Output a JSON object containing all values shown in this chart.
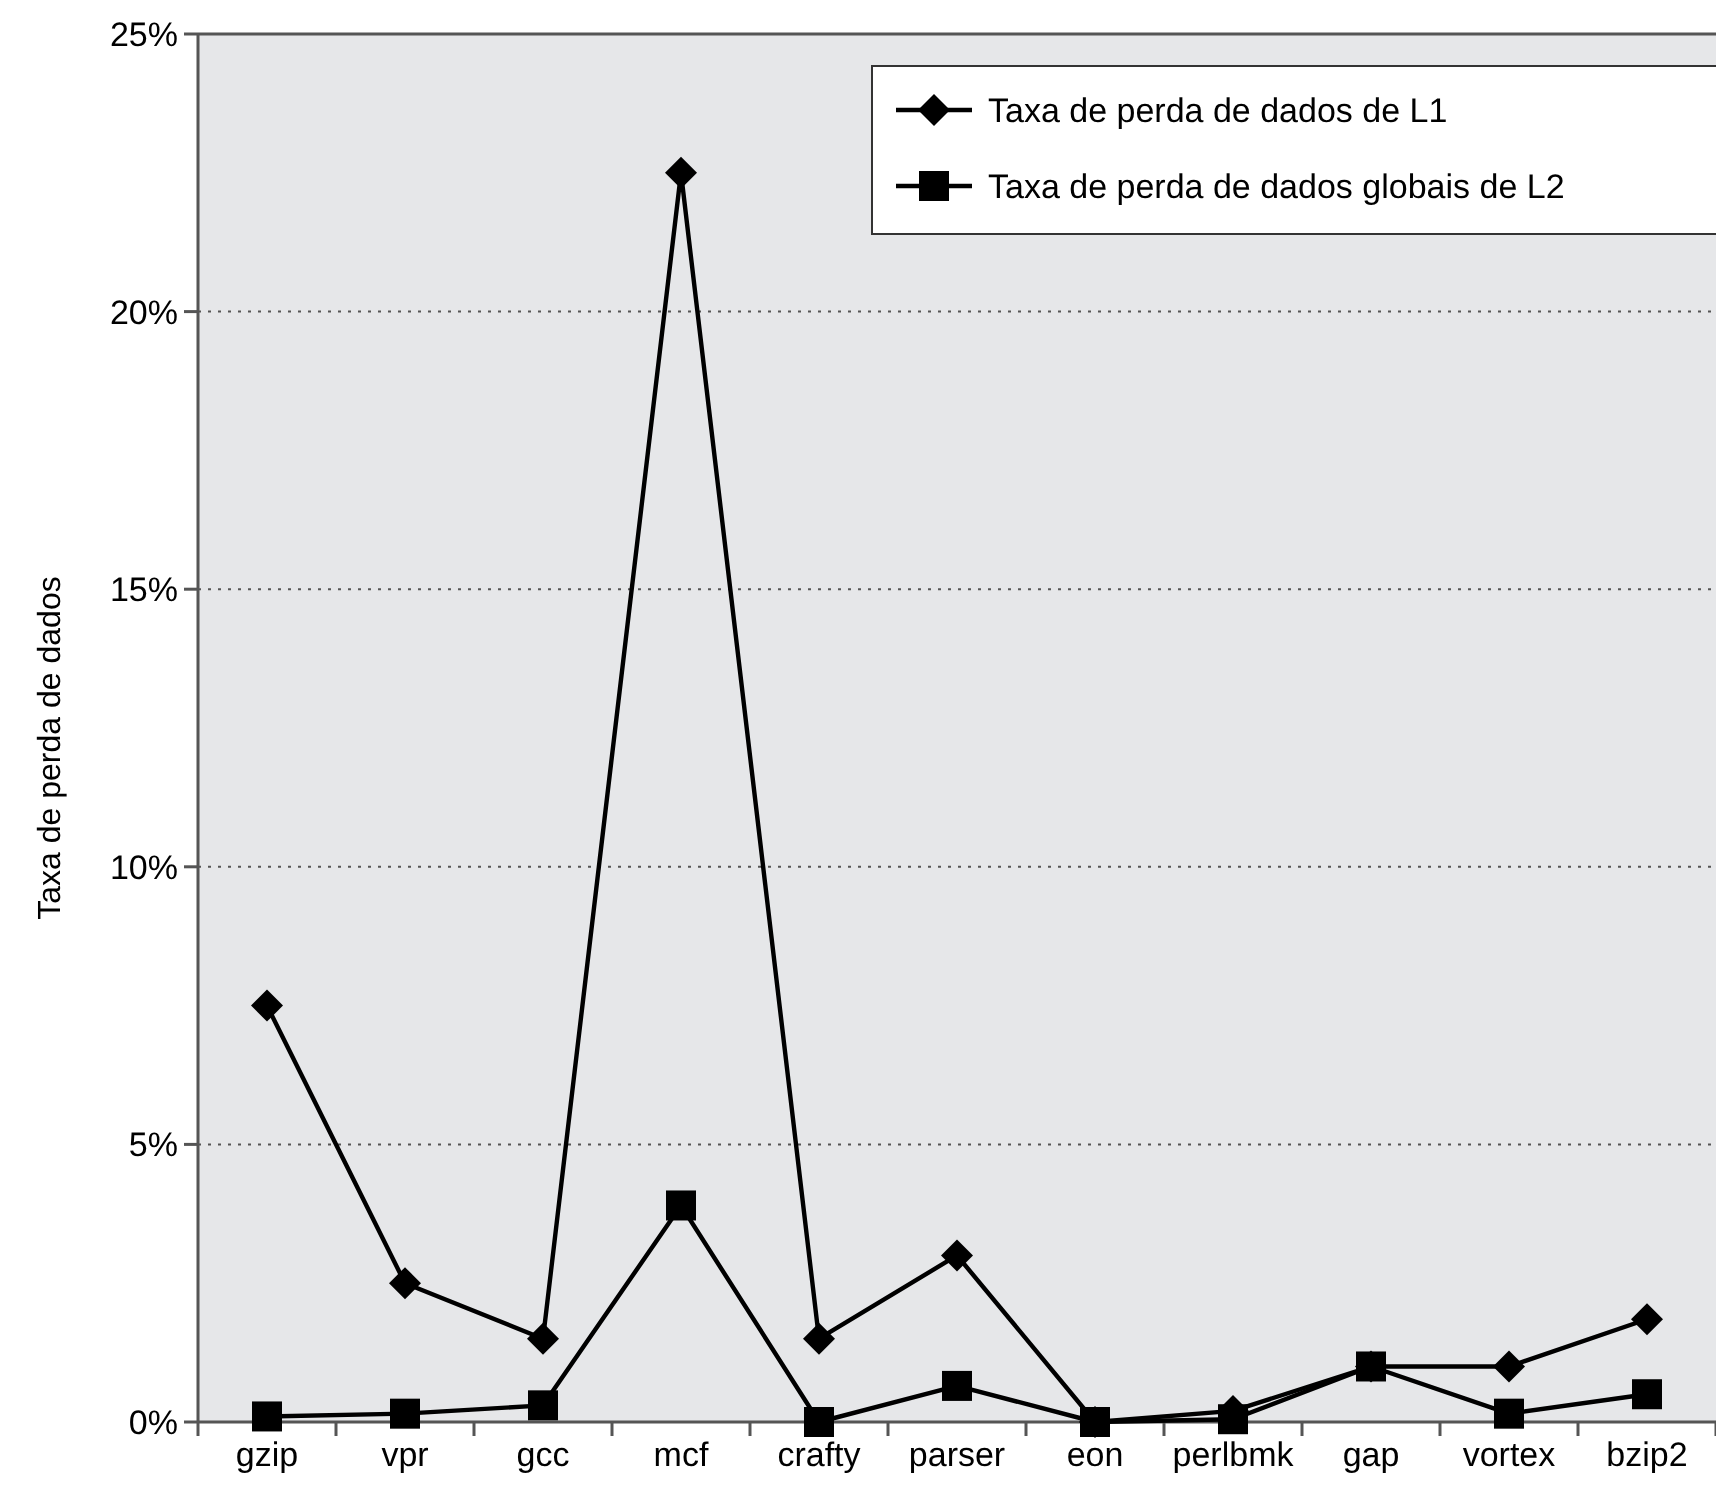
{
  "chart_data": {
    "type": "line",
    "ylabel": "Taxa de perda de dados",
    "categories": [
      "gzip",
      "vpr",
      "gcc",
      "mcf",
      "crafty",
      "parser",
      "eon",
      "perlbmk",
      "gap",
      "vortex",
      "bzip2"
    ],
    "series": [
      {
        "name": "Taxa de perda de dados de L1",
        "color": "#000000",
        "marker": "diamond",
        "values": [
          7.5,
          2.5,
          1.5,
          22.5,
          1.5,
          3.0,
          0,
          0.2,
          1.0,
          1.0,
          1.85
        ]
      },
      {
        "name": "Taxa de perda de dados globais de L2",
        "color": "#000000",
        "marker": "square",
        "values": [
          0.1,
          0.15,
          0.3,
          3.9,
          0,
          0.65,
          0,
          0.05,
          1.0,
          0.15,
          0.5
        ]
      }
    ],
    "ylim": [
      0,
      25
    ],
    "yticks": [
      {
        "value": 0,
        "label": "0%"
      },
      {
        "value": 5,
        "label": "5%"
      },
      {
        "value": 10,
        "label": "10%"
      },
      {
        "value": 15,
        "label": "15%"
      },
      {
        "value": 20,
        "label": "20%"
      },
      {
        "value": 25,
        "label": "25%"
      }
    ],
    "grid": "y",
    "legend": "top right",
    "line_style": "solid"
  }
}
